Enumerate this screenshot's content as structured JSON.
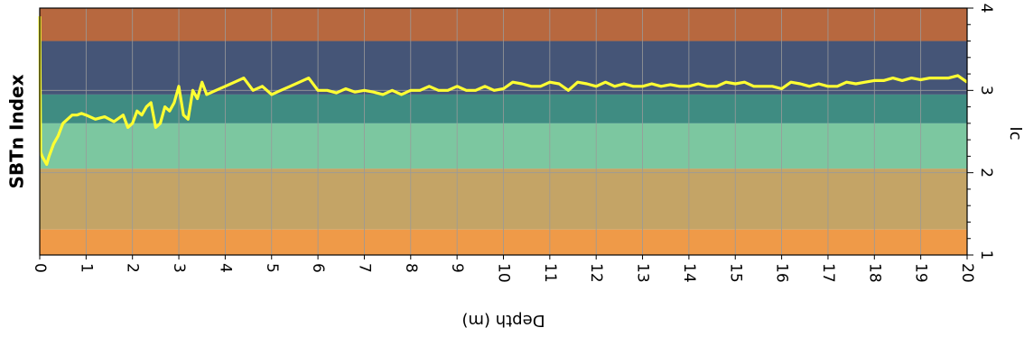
{
  "chart_data": {
    "type": "line",
    "title": "SBTn Index",
    "xlabel": "Depth (m)",
    "ylabel": "Ic",
    "xlim": [
      0,
      20
    ],
    "ylim": [
      1,
      4
    ],
    "x_ticks": [
      "0",
      "1",
      "2",
      "3",
      "4",
      "5",
      "6",
      "7",
      "8",
      "9",
      "10",
      "11",
      "12",
      "13",
      "14",
      "15",
      "16",
      "17",
      "18",
      "19",
      "20"
    ],
    "y_ticks": [
      "1",
      "2",
      "3",
      "4"
    ],
    "grid": true,
    "line_color": "#ffff33",
    "zones": [
      {
        "from": 1.0,
        "to": 1.31,
        "color": "#ef9a48"
      },
      {
        "from": 1.31,
        "to": 2.05,
        "color": "#c4a466"
      },
      {
        "from": 2.05,
        "to": 2.6,
        "color": "#7cc7a0"
      },
      {
        "from": 2.6,
        "to": 2.95,
        "color": "#3f8c82"
      },
      {
        "from": 2.95,
        "to": 3.6,
        "color": "#455577"
      },
      {
        "from": 3.6,
        "to": 4.0,
        "color": "#b7683f"
      }
    ],
    "series": [
      {
        "x": [
          0.0,
          0.02,
          0.05,
          0.1,
          0.15,
          0.2,
          0.3,
          0.4,
          0.5,
          0.6,
          0.7,
          0.8,
          0.9,
          1.0,
          1.2,
          1.4,
          1.6,
          1.8,
          1.9,
          2.0,
          2.1,
          2.2,
          2.3,
          2.4,
          2.5,
          2.6,
          2.7,
          2.8,
          2.9,
          3.0,
          3.1,
          3.2,
          3.3,
          3.4,
          3.5,
          3.6,
          3.8,
          4.0,
          4.2,
          4.4,
          4.6,
          4.8,
          5.0,
          5.2,
          5.4,
          5.6,
          5.8,
          6.0,
          6.2,
          6.4,
          6.6,
          6.8,
          7.0,
          7.2,
          7.4,
          7.6,
          7.8,
          8.0,
          8.2,
          8.4,
          8.6,
          8.8,
          9.0,
          9.2,
          9.4,
          9.6,
          9.8,
          10.0,
          10.2,
          10.4,
          10.6,
          10.8,
          11.0,
          11.2,
          11.4,
          11.6,
          11.8,
          12.0,
          12.2,
          12.4,
          12.6,
          12.8,
          13.0,
          13.2,
          13.4,
          13.6,
          13.8,
          14.0,
          14.2,
          14.4,
          14.6,
          14.8,
          15.0,
          15.2,
          15.4,
          15.6,
          15.8,
          16.0,
          16.2,
          16.4,
          16.6,
          16.8,
          17.0,
          17.2,
          17.4,
          17.6,
          17.8,
          18.0,
          18.2,
          18.4,
          18.6,
          18.8,
          19.0,
          19.2,
          19.4,
          19.6,
          19.8,
          20.0
        ],
        "y": [
          3.9,
          2.25,
          2.2,
          2.15,
          2.1,
          2.2,
          2.35,
          2.45,
          2.6,
          2.65,
          2.7,
          2.7,
          2.72,
          2.7,
          2.65,
          2.68,
          2.62,
          2.7,
          2.55,
          2.6,
          2.75,
          2.7,
          2.8,
          2.85,
          2.55,
          2.6,
          2.8,
          2.75,
          2.85,
          3.05,
          2.7,
          2.65,
          3.0,
          2.9,
          3.1,
          2.95,
          3.0,
          3.05,
          3.1,
          3.15,
          3.0,
          3.05,
          2.95,
          3.0,
          3.05,
          3.1,
          3.15,
          3.0,
          3.0,
          2.97,
          3.02,
          2.98,
          3.0,
          2.98,
          2.95,
          3.0,
          2.95,
          3.0,
          3.0,
          3.05,
          3.0,
          3.0,
          3.05,
          3.0,
          3.0,
          3.05,
          3.0,
          3.02,
          3.1,
          3.08,
          3.05,
          3.05,
          3.1,
          3.08,
          3.0,
          3.1,
          3.08,
          3.05,
          3.1,
          3.05,
          3.08,
          3.05,
          3.05,
          3.08,
          3.05,
          3.07,
          3.05,
          3.05,
          3.08,
          3.05,
          3.05,
          3.1,
          3.08,
          3.1,
          3.05,
          3.05,
          3.05,
          3.02,
          3.1,
          3.08,
          3.05,
          3.08,
          3.05,
          3.05,
          3.1,
          3.08,
          3.1,
          3.12,
          3.12,
          3.15,
          3.12,
          3.15,
          3.13,
          3.15,
          3.15,
          3.15,
          3.18,
          3.1
        ]
      }
    ]
  }
}
